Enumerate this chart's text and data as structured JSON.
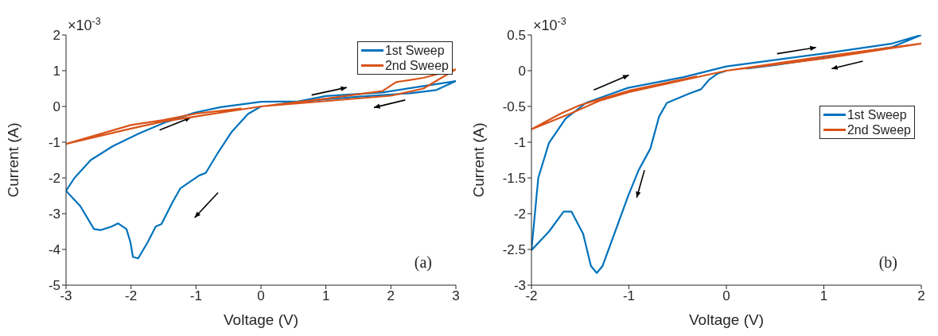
{
  "chart_data": [
    {
      "type": "line",
      "xlabel": "Voltage (V)",
      "ylabel": "Current (A)",
      "xlim": [
        -3,
        3
      ],
      "ylim": [
        -5,
        2
      ],
      "xticks": [
        -3,
        -2,
        -1,
        0,
        1,
        2,
        3
      ],
      "yticks": [
        -5,
        -4,
        -3,
        -2,
        -1,
        0,
        1,
        2
      ],
      "grid": false,
      "legend": "top right",
      "annotations": [
        "×10$^{-3}$",
        "(a)"
      ],
      "series": [
        {
          "name": "1st Sweep",
          "color": "#0072bd",
          "x": [
            0,
            -0.2,
            -0.45,
            -0.66,
            -0.85,
            -0.95,
            -1.12,
            -1.24,
            -1.37,
            -1.53,
            -1.62,
            -1.74,
            -1.89,
            -1.97,
            -2.01,
            -2.07,
            -2.2,
            -2.3,
            -2.47,
            -2.57,
            -2.78,
            -3,
            -2.87,
            -2.62,
            -2.28,
            -1.87,
            -1.45,
            -1.03,
            -0.62,
            0,
            0.58,
            1.0,
            1.87,
            2.5,
            3,
            2.7,
            2.3,
            1.47,
            1.0,
            0.5,
            0.2
          ],
          "values": [
            0,
            -0.21,
            -0.71,
            -1.29,
            -1.86,
            -1.93,
            -2.14,
            -2.29,
            -2.71,
            -3.29,
            -3.36,
            -3.79,
            -4.25,
            -4.21,
            -3.79,
            -3.43,
            -3.27,
            -3.36,
            -3.46,
            -3.43,
            -2.79,
            -2.36,
            -2.0,
            -1.5,
            -1.11,
            -0.75,
            -0.43,
            -0.18,
            -0.02,
            0.13,
            0.14,
            0.29,
            0.39,
            0.57,
            0.71,
            0.46,
            0.37,
            0.27,
            0.2,
            0.11,
            0.04
          ]
        },
        {
          "name": "2nd Sweep",
          "color": "#d95319",
          "x": [
            0,
            1,
            1.87,
            2.08,
            2.5,
            3,
            2.5,
            2,
            1,
            0,
            -1,
            -1.5,
            -2,
            -3,
            -2,
            -1.5,
            -1,
            -0.3
          ],
          "values": [
            0,
            0.22,
            0.43,
            0.68,
            0.8,
            1.04,
            0.5,
            0.3,
            0.15,
            0,
            -0.28,
            -0.42,
            -0.62,
            -1.05,
            -0.52,
            -0.38,
            -0.2,
            -0.06
          ]
        }
      ]
    },
    {
      "type": "line",
      "xlabel": "Voltage (V)",
      "ylabel": "Current (A)",
      "xlim": [
        -2,
        2
      ],
      "ylim": [
        -3,
        0.5
      ],
      "xticks": [
        -2,
        -1,
        0,
        1,
        2
      ],
      "yticks": [
        -3,
        -2.5,
        -2,
        -1.5,
        -1,
        -0.5,
        0,
        0.5
      ],
      "grid": false,
      "legend": "right",
      "annotations": [
        "×10$^{-3}$",
        "(b)"
      ],
      "series": [
        {
          "name": "1st Sweep",
          "color": "#0072bd",
          "x": [
            0,
            -0.09,
            -0.18,
            -0.26,
            -0.38,
            -0.61,
            -0.69,
            -0.78,
            -0.9,
            -1.01,
            -1.16,
            -1.27,
            -1.33,
            -1.39,
            -1.47,
            -1.59,
            -1.67,
            -1.82,
            -2,
            -1.93,
            -1.82,
            -1.65,
            -1.44,
            -1.01,
            -0.44,
            0,
            1,
            1.7,
            2,
            1.7,
            1,
            0.5,
            0.2
          ],
          "values": [
            0,
            -0.04,
            -0.13,
            -0.26,
            -0.32,
            -0.45,
            -0.64,
            -1.09,
            -1.39,
            -1.76,
            -2.32,
            -2.73,
            -2.83,
            -2.73,
            -2.28,
            -1.97,
            -1.97,
            -2.25,
            -2.51,
            -1.5,
            -1.01,
            -0.67,
            -0.45,
            -0.24,
            -0.09,
            0.06,
            0.24,
            0.38,
            0.5,
            0.33,
            0.18,
            0.08,
            0.03
          ]
        },
        {
          "name": "2nd Sweep",
          "color": "#d95319",
          "x": [
            0,
            1,
            2,
            1,
            0,
            -1,
            -1.3,
            -1.6,
            -2,
            -1.7,
            -1.5,
            -1,
            -0.3
          ],
          "values": [
            0,
            0.2,
            0.38,
            0.17,
            0,
            -0.3,
            -0.42,
            -0.6,
            -0.82,
            -0.6,
            -0.48,
            -0.28,
            -0.08
          ]
        }
      ]
    }
  ]
}
